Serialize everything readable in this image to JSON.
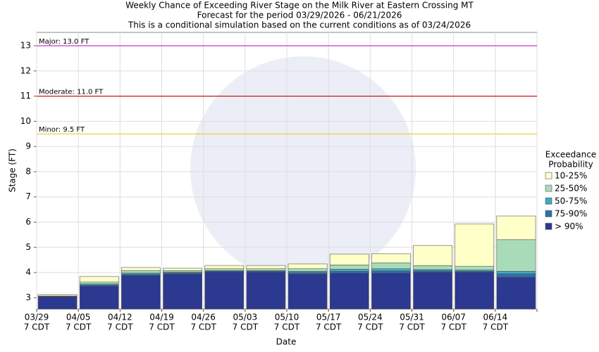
{
  "chart_data": {
    "type": "range-bar",
    "title": [
      "Weekly Chance of Exceeding River Stage on the Milk River at Eastern Crossing MT",
      "Forecast for the period 03/29/2026 - 06/21/2026",
      "This is a conditional simulation based on the current conditions as of 03/24/2026"
    ],
    "x_label": "Date",
    "y_label": "Stage (FT)",
    "categories": [
      "03/29",
      "04/05",
      "04/12",
      "04/19",
      "04/26",
      "05/03",
      "05/10",
      "05/17",
      "05/24",
      "05/31",
      "06/07",
      "06/14"
    ],
    "category_sublabels": [
      "7 CDT",
      "7 CDT",
      "7 CDT",
      "7 CDT",
      "7 CDT",
      "7 CDT",
      "7 CDT",
      "7 CDT",
      "7 CDT",
      "7 CDT",
      "7 CDT",
      "7 CDT"
    ],
    "legend_title": [
      "Exceedance",
      "Probability"
    ],
    "series": [
      {
        "name": "> 90%",
        "color": "#2b3990",
        "values": [
          3.04,
          3.47,
          3.89,
          3.95,
          4.03,
          4.02,
          3.95,
          3.98,
          3.98,
          4.02,
          4.02,
          3.82
        ]
      },
      {
        "name": "75-90%",
        "color": "#2c6fae",
        "values": [
          3.05,
          3.5,
          3.93,
          3.98,
          4.05,
          4.05,
          4.0,
          4.05,
          4.06,
          4.07,
          4.05,
          3.95
        ]
      },
      {
        "name": "50-75%",
        "color": "#3fa9c0",
        "values": [
          3.06,
          3.55,
          3.98,
          4.02,
          4.08,
          4.08,
          4.05,
          4.13,
          4.15,
          4.12,
          4.1,
          4.05
        ]
      },
      {
        "name": "25-50%",
        "color": "#a8dcb8",
        "values": [
          3.07,
          3.62,
          4.08,
          4.08,
          4.15,
          4.15,
          4.15,
          4.3,
          4.38,
          4.27,
          4.25,
          5.3
        ]
      },
      {
        "name": "10-25%",
        "color": "#ffffc8",
        "values": [
          3.12,
          3.84,
          4.2,
          4.17,
          4.28,
          4.28,
          4.34,
          4.73,
          4.75,
          5.07,
          5.93,
          6.24
        ]
      }
    ],
    "thresholds": [
      {
        "label": "Major: 13.0 FT",
        "value": 13,
        "color": "#cc33cc"
      },
      {
        "label": "Moderate: 11.0 FT",
        "value": 11,
        "color": "#cc0000"
      },
      {
        "label": "Minor: 9.5 FT",
        "value": 9.5,
        "color": "#e8d040"
      }
    ],
    "ylim": [
      2.55,
      13.53
    ],
    "yticks": [
      3,
      4,
      5,
      6,
      7,
      8,
      9,
      10,
      11,
      12,
      13
    ],
    "grid": true
  }
}
